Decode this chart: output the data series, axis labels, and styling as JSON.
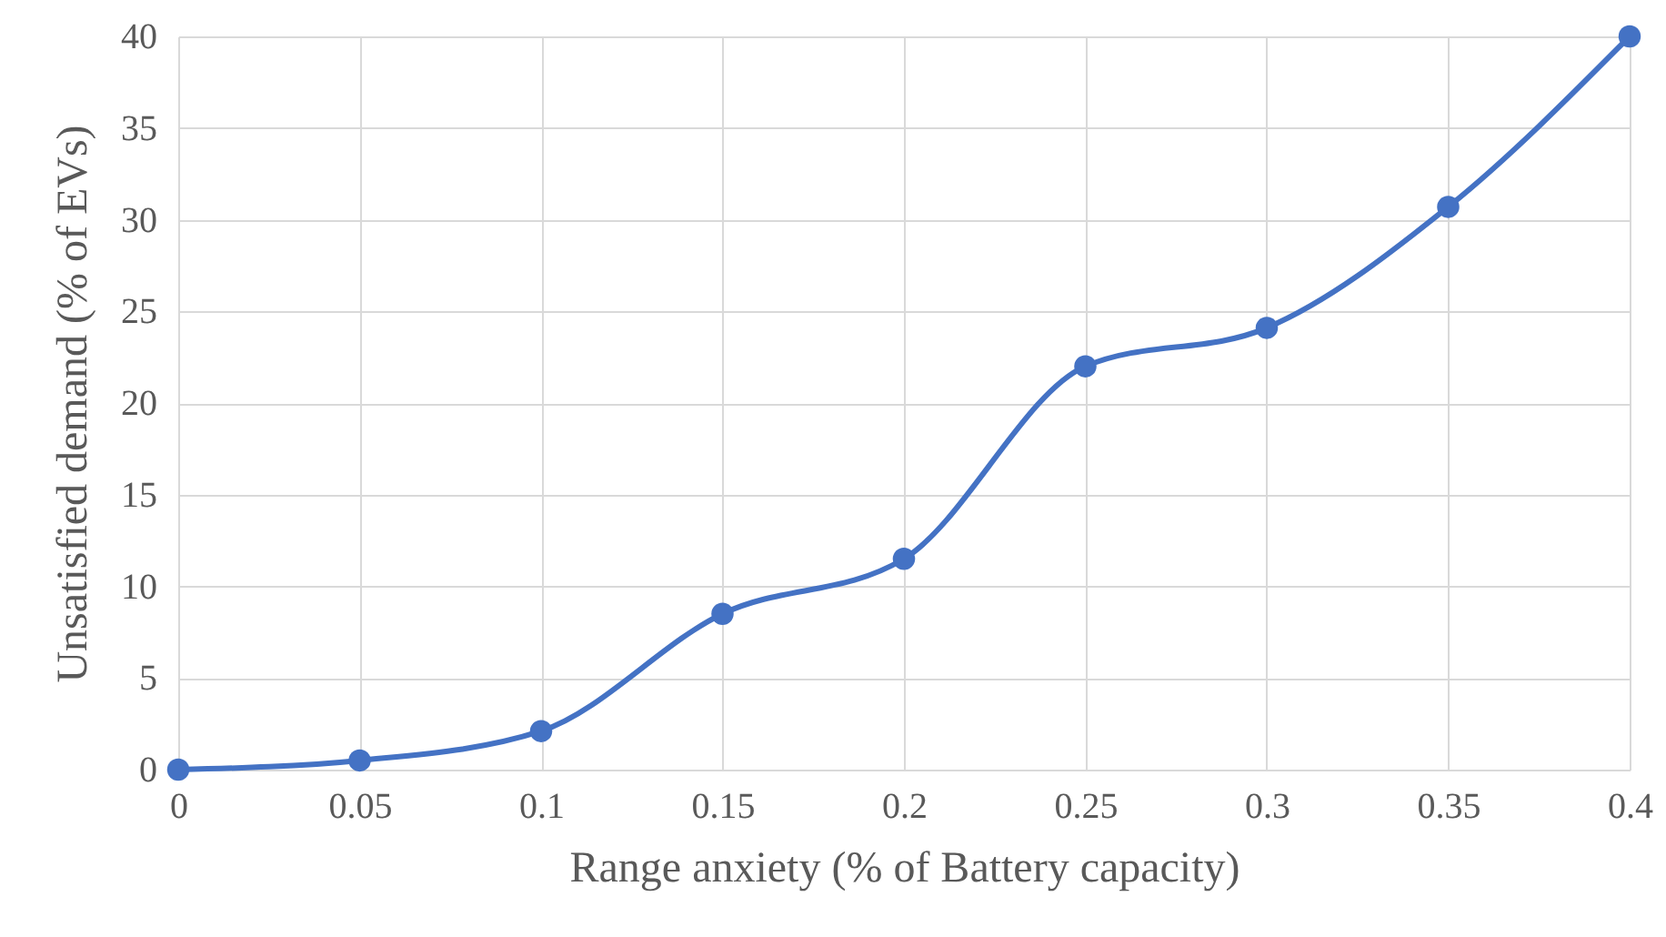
{
  "chart_data": {
    "type": "line",
    "xlabel": "Range anxiety (% of Battery capacity)",
    "ylabel": "Unsatisfied demand (% of EVs)",
    "x": [
      0,
      0.05,
      0.1,
      0.15,
      0.2,
      0.25,
      0.3,
      0.35,
      0.4
    ],
    "series": [
      {
        "color": "#4472c4",
        "values": [
          0,
          0.5,
          2.1,
          8.5,
          11.5,
          22.0,
          24.1,
          30.7,
          40
        ]
      }
    ],
    "xlim": [
      0,
      0.4
    ],
    "xticks": [
      0,
      0.05,
      0.1,
      0.15,
      0.2,
      0.25,
      0.3,
      0.35,
      0.4
    ],
    "ylim": [
      0,
      40
    ],
    "yticks": [
      0,
      5,
      10,
      15,
      20,
      25,
      30,
      35,
      40
    ],
    "grid": true,
    "marker": "circle",
    "line_style": "solid"
  }
}
